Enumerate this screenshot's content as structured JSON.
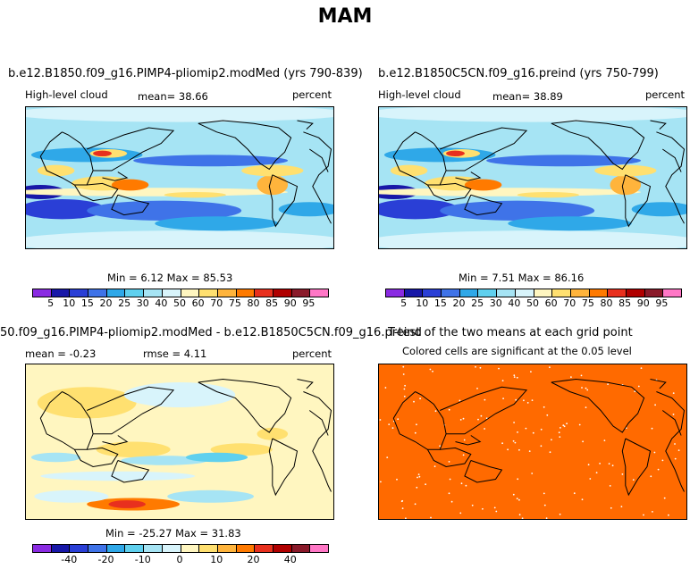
{
  "figure_title": "MAM",
  "colors": {
    "palette_abs": [
      "#8a2be2",
      "#1818a8",
      "#2a3fd6",
      "#3f73e8",
      "#2fa8e8",
      "#5fd0ee",
      "#a6e4f4",
      "#d8f4fb",
      "#fff6c0",
      "#ffe070",
      "#ffb43c",
      "#ff7a00",
      "#e8301e",
      "#b00000",
      "#8a1a2a",
      "#ff77c6"
    ],
    "palette_diff": [
      "#8a2be2",
      "#1818a8",
      "#2a3fd6",
      "#3f73e8",
      "#2fa8e8",
      "#5fd0ee",
      "#a6e4f4",
      "#d8f4fb",
      "#fff6c0",
      "#ffe070",
      "#ffb43c",
      "#ff7a00",
      "#e8301e",
      "#b00000",
      "#8a1a2a",
      "#ff77c6"
    ],
    "significance": "#ff6a00"
  },
  "chart_data": [
    {
      "type": "heatmap",
      "title": "b.e12.B1850.f09_g16.PIMP4-pliomip2.modMed (yrs 790-839)",
      "left_label": "High-level cloud",
      "center_label": "mean=  38.66",
      "right_label": "percent",
      "min": 6.12,
      "max": 85.53,
      "stats_text": "Min =   6.12  Max =  85.53",
      "colorbar_levels": [
        5,
        10,
        15,
        20,
        25,
        30,
        40,
        50,
        60,
        70,
        75,
        80,
        85,
        90,
        95
      ],
      "colorbar_tick_labels": [
        "5",
        "10",
        "15",
        "20",
        "25",
        "30",
        "40",
        "50",
        "60",
        "70",
        "75",
        "80",
        "85",
        "90",
        "95"
      ]
    },
    {
      "type": "heatmap",
      "title": "b.e12.B1850C5CN.f09_g16.preind (yrs 750-799)",
      "left_label": "High-level cloud",
      "center_label": "mean=  38.89",
      "right_label": "percent",
      "min": 7.51,
      "max": 86.16,
      "stats_text": "Min =   7.51  Max =  86.16",
      "colorbar_levels": [
        5,
        10,
        15,
        20,
        25,
        30,
        40,
        50,
        60,
        70,
        75,
        80,
        85,
        90,
        95
      ],
      "colorbar_tick_labels": [
        "5",
        "10",
        "15",
        "20",
        "25",
        "30",
        "40",
        "50",
        "60",
        "70",
        "75",
        "80",
        "85",
        "90",
        "95"
      ]
    },
    {
      "type": "heatmap",
      "title": "50.f09_g16.PIMP4-pliomip2.modMed - b.e12.B1850C5CN.f09_g16.preind",
      "left_label": "mean =  -0.23",
      "center_label": "rmse =   4.11",
      "right_label": "percent",
      "min": -25.27,
      "max": 31.83,
      "stats_text": "Min = -25.27  Max =  31.83",
      "colorbar_tick_labels": [
        "-40",
        "-20",
        "-10",
        "0",
        "10",
        "20",
        "40"
      ]
    },
    {
      "type": "heatmap",
      "title": "T-test of the two means at each grid point",
      "subtitle": "Colored cells are significant at the 0.05 level",
      "significance_level": 0.05
    }
  ]
}
